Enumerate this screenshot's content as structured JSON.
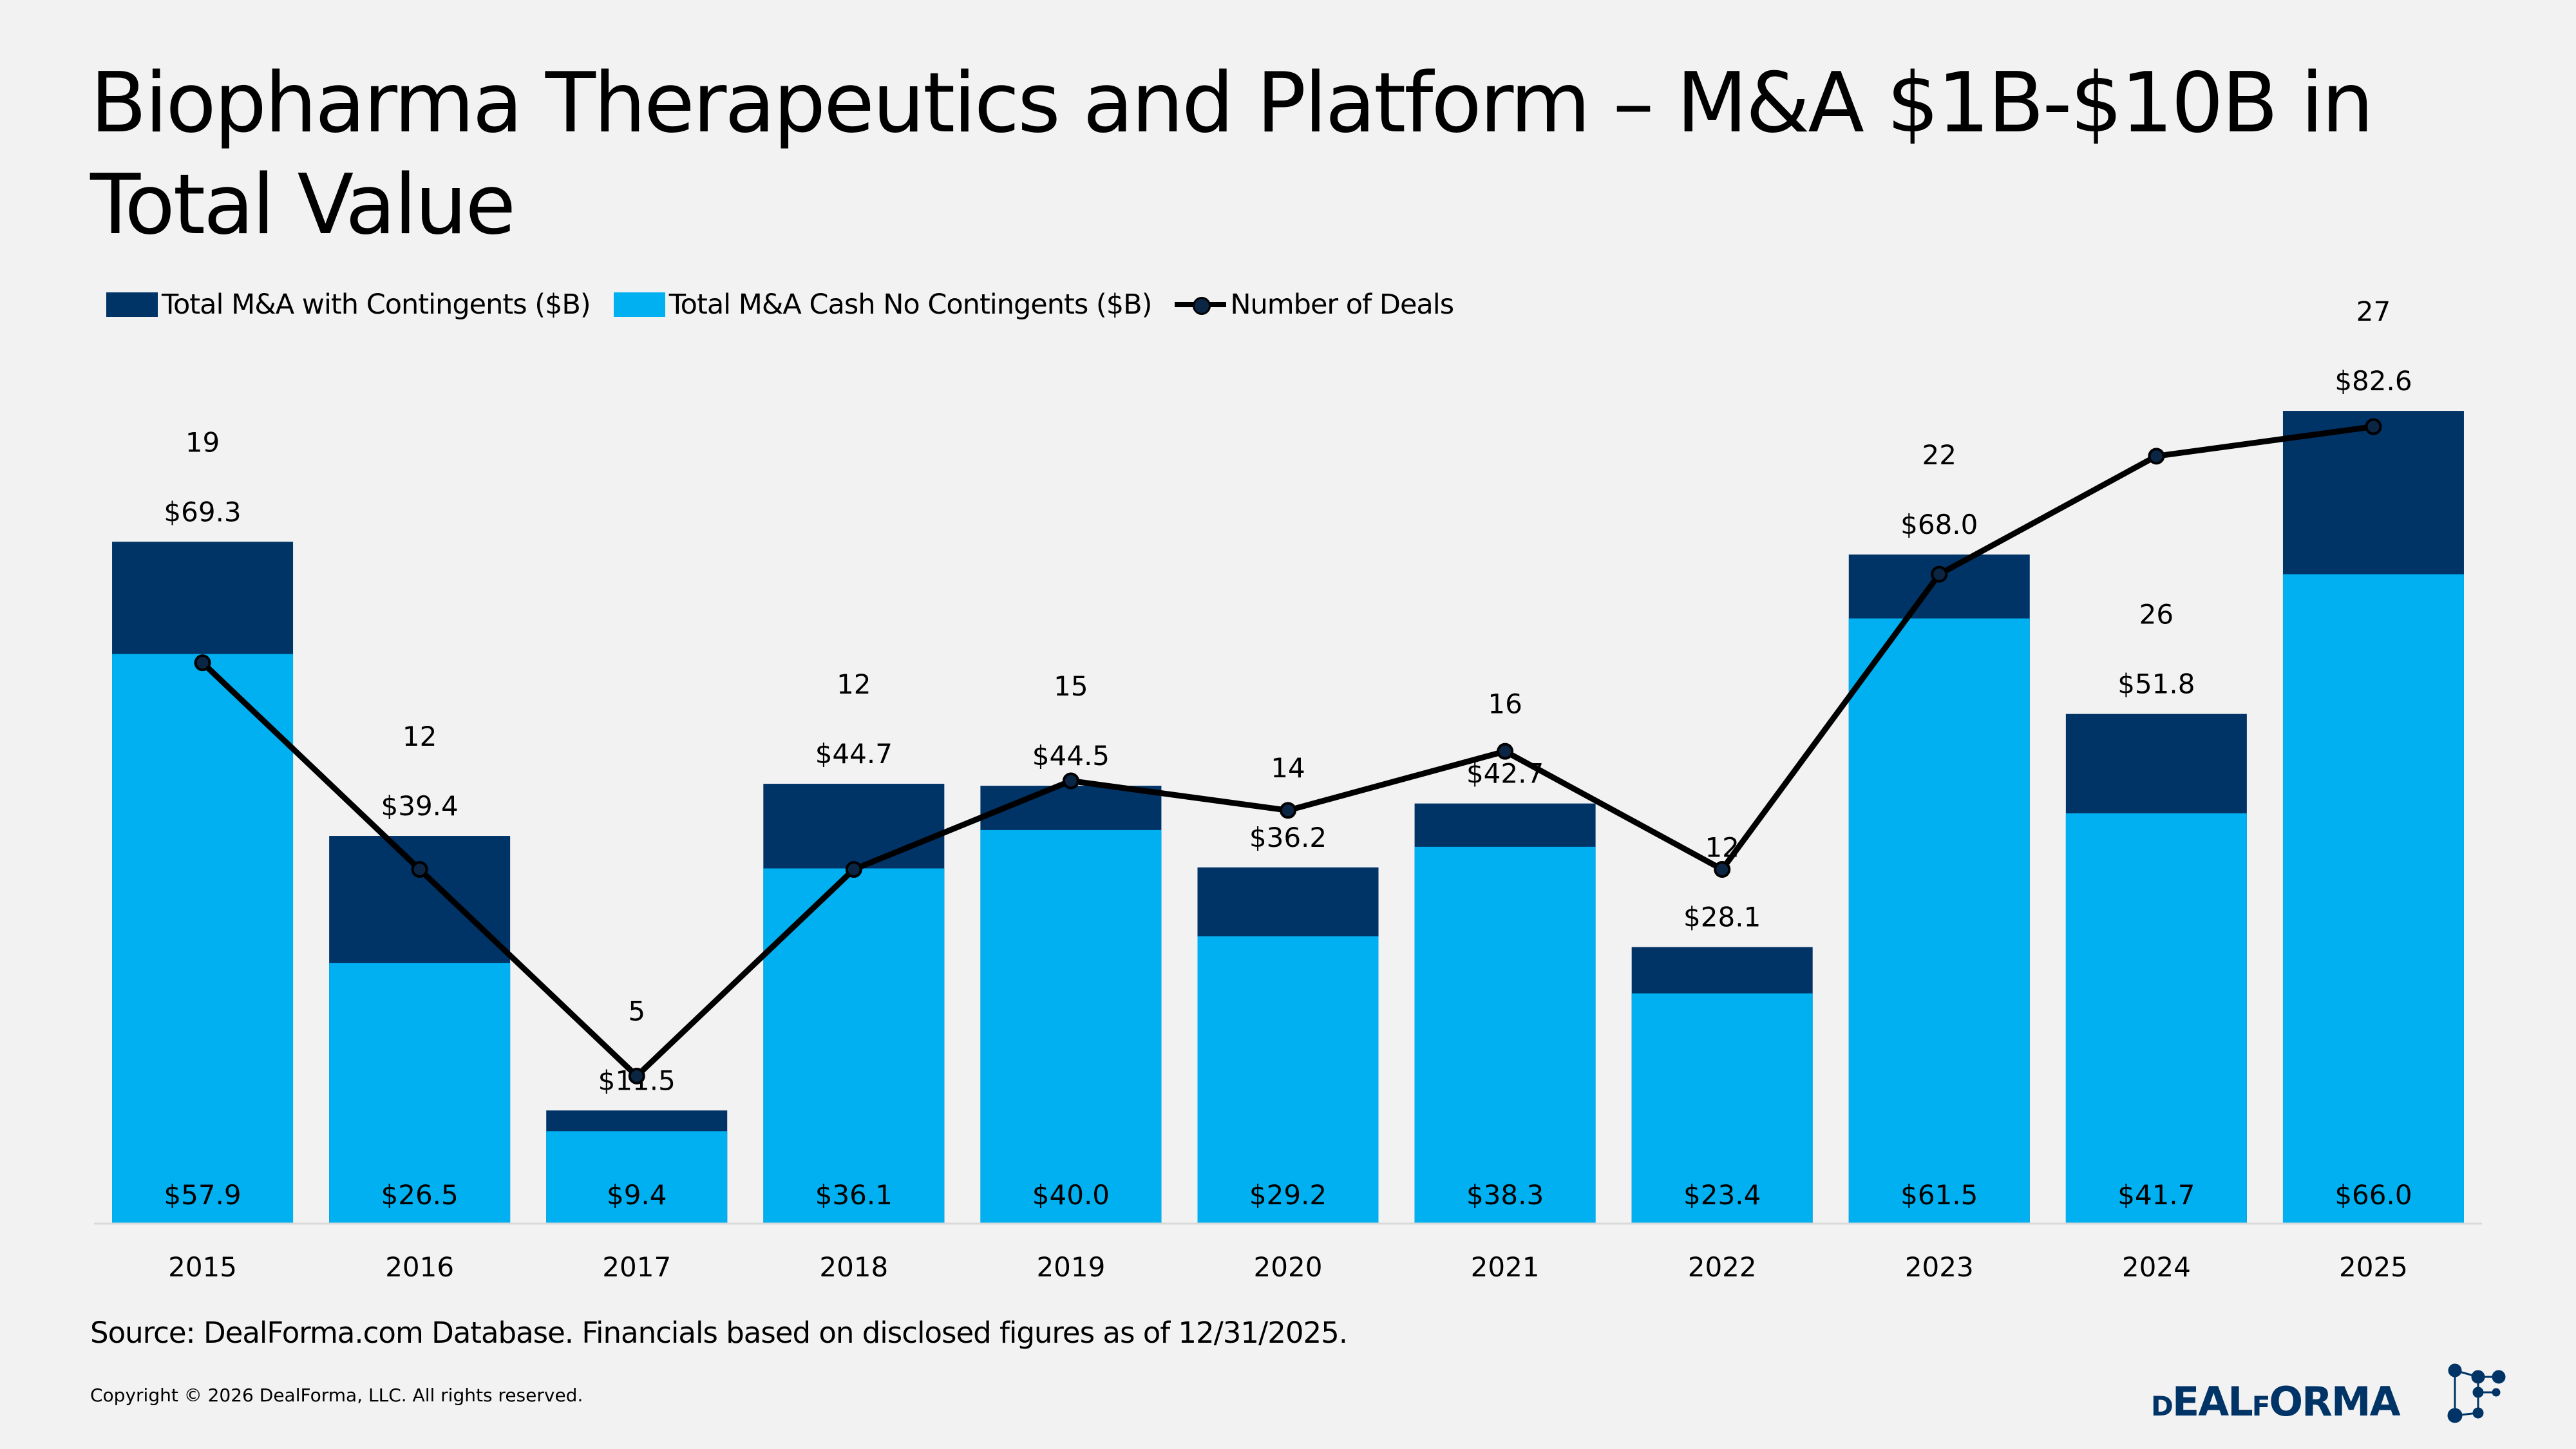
{
  "title": "Biopharma Therapeutics and Platform – M&A $1B-$10B in Total Value",
  "source": "Source: DealForma.com Database. Financials based on disclosed figures as of 12/31/2025.",
  "copyright": "Copyright © 2026 DealForma, LLC. All rights reserved.",
  "logo_text": "DEALFORMA",
  "chart_data": {
    "type": "bar",
    "title": "Biopharma Therapeutics and Platform – M&A $1B-$10B in Total Value",
    "categories": [
      "2015",
      "2016",
      "2017",
      "2018",
      "2019",
      "2020",
      "2021",
      "2022",
      "2023",
      "2024",
      "2025"
    ],
    "series": [
      {
        "name": "Total M&A with Contingents ($B)",
        "type": "bar",
        "color": "#003366",
        "values": [
          69.3,
          39.4,
          11.5,
          44.7,
          44.5,
          36.2,
          42.7,
          28.1,
          68.0,
          51.8,
          82.6
        ],
        "labels": [
          "$69.3",
          "$39.4",
          "$11.5",
          "$44.7",
          "$44.5",
          "$36.2",
          "$42.7",
          "$28.1",
          "$68.0",
          "$51.8",
          "$82.6"
        ]
      },
      {
        "name": "Total M&A Cash No Contingents ($B)",
        "type": "bar",
        "color": "#00b0f0",
        "values": [
          57.9,
          26.5,
          9.4,
          36.1,
          40.0,
          29.2,
          38.3,
          23.4,
          61.5,
          41.7,
          66.0
        ],
        "labels": [
          "$57.9",
          "$26.5",
          "$9.4",
          "$36.1",
          "$40.0",
          "$29.2",
          "$38.3",
          "$23.4",
          "$61.5",
          "$41.7",
          "$66.0"
        ]
      },
      {
        "name": "Number of Deals",
        "type": "line",
        "axis": "secondary",
        "color": "#000000",
        "values": [
          19,
          12,
          5,
          12,
          15,
          14,
          16,
          12,
          22,
          26,
          27
        ],
        "labels": [
          "19",
          "12",
          "5",
          "12",
          "15",
          "14",
          "16",
          "12",
          "22",
          "26",
          "27"
        ]
      }
    ],
    "ylim": [
      0,
      90
    ],
    "y2lim": [
      0,
      30
    ],
    "grid": false,
    "legend": "top-left"
  }
}
